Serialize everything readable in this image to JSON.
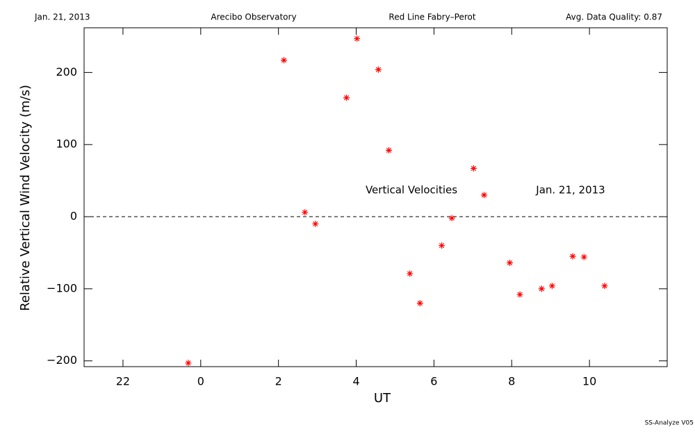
{
  "header": {
    "date": "Jan. 21, 2013",
    "site": "Arecibo Observatory",
    "instrument": "Red Line Fabry–Perot",
    "quality": "Avg. Data Quality: 0.87"
  },
  "footer": "SS-Analyze V05",
  "chart_data": {
    "type": "scatter",
    "xlabel": "UT",
    "ylabel": "Relative Vertical Wind Velocity (m/s)",
    "annotations": [
      "Vertical Velocities",
      "Jan. 21, 2013"
    ],
    "xlim": [
      -3,
      12
    ],
    "ylim": [
      -208,
      262
    ],
    "xticks": [
      {
        "value": -2,
        "label": "22"
      },
      0,
      2,
      4,
      6,
      8,
      10
    ],
    "yticks": [
      {
        "value": -200,
        "label": "−200"
      },
      {
        "value": -100,
        "label": "−100"
      },
      0,
      100,
      200
    ],
    "reference_line": 0,
    "color": "#ff0000",
    "x": [
      -0.32,
      2.14,
      2.68,
      2.95,
      3.75,
      4.02,
      4.57,
      4.84,
      5.38,
      5.64,
      6.2,
      6.46,
      7.02,
      7.29,
      7.95,
      8.21,
      8.77,
      9.04,
      9.57,
      9.86,
      10.39
    ],
    "values": [
      -203,
      217,
      6,
      -10,
      165,
      247,
      204,
      92,
      -79,
      -120,
      -40,
      -2,
      67,
      30,
      -64,
      -108,
      -100,
      -96,
      -55,
      -56,
      -96
    ]
  }
}
